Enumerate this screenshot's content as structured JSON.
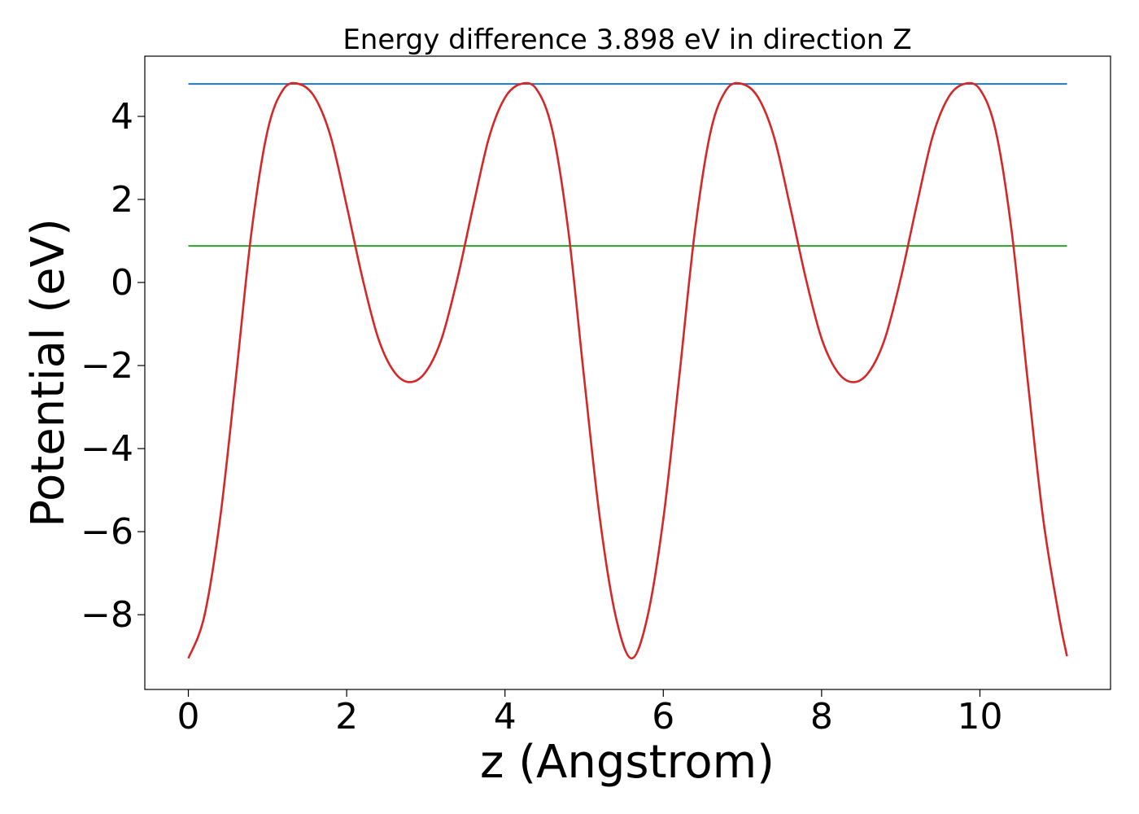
{
  "chart_data": {
    "type": "line",
    "title": "Energy difference 3.898 eV in direction Z",
    "xlabel": "z (Angstrom)",
    "ylabel": "Potential (eV)",
    "xlim": [
      -0.55,
      11.65
    ],
    "ylim": [
      -9.8,
      5.45
    ],
    "xticks": [
      0,
      2,
      4,
      6,
      8,
      10
    ],
    "xtick_labels": [
      "0",
      "2",
      "4",
      "6",
      "8",
      "10"
    ],
    "yticks": [
      -8,
      -6,
      -4,
      -2,
      0,
      2,
      4
    ],
    "ytick_labels": [
      "−8",
      "−6",
      "−4",
      "−2",
      "0",
      "2",
      "4"
    ],
    "grid": false,
    "series": [
      {
        "color": "#d62728",
        "x": [
          0,
          0.2,
          0.4,
          0.6,
          0.8,
          1.0,
          1.2,
          1.4,
          1.6,
          1.8,
          2.0,
          2.2,
          2.4,
          2.6,
          2.8,
          3.0,
          3.2,
          3.4,
          3.6,
          3.8,
          4.0,
          4.2,
          4.4,
          4.6,
          4.8,
          5.0,
          5.2,
          5.4,
          5.6,
          5.8,
          6.0,
          6.2,
          6.4,
          6.6,
          6.8,
          7.0,
          7.2,
          7.4,
          7.6,
          7.8,
          8.0,
          8.2,
          8.4,
          8.6,
          8.8,
          9.0,
          9.2,
          9.4,
          9.6,
          9.8,
          10.0,
          10.2,
          10.4,
          10.6,
          10.8,
          11.0,
          11.1
        ],
        "y": [
          -9.05,
          -8.05,
          -5.7,
          -2.3,
          1.25,
          3.65,
          4.65,
          4.78,
          4.45,
          3.5,
          1.85,
          0.1,
          -1.35,
          -2.15,
          -2.4,
          -2.15,
          -1.35,
          0.1,
          1.85,
          3.5,
          4.45,
          4.78,
          4.65,
          3.65,
          1.25,
          -2.3,
          -5.7,
          -8.05,
          -9.05,
          -8.05,
          -5.7,
          -2.3,
          1.25,
          3.65,
          4.65,
          4.78,
          4.45,
          3.5,
          1.85,
          0.1,
          -1.35,
          -2.15,
          -2.4,
          -2.15,
          -1.35,
          0.1,
          1.85,
          3.5,
          4.45,
          4.78,
          4.65,
          3.65,
          1.25,
          -2.3,
          -5.7,
          -8.05,
          -9.0
        ]
      },
      {
        "color": "#1f77b4",
        "x": [
          0,
          11.1
        ],
        "y": [
          4.78,
          4.78
        ]
      },
      {
        "color": "#2ca02c",
        "x": [
          0,
          11.1
        ],
        "y": [
          0.88,
          0.88
        ]
      }
    ]
  }
}
